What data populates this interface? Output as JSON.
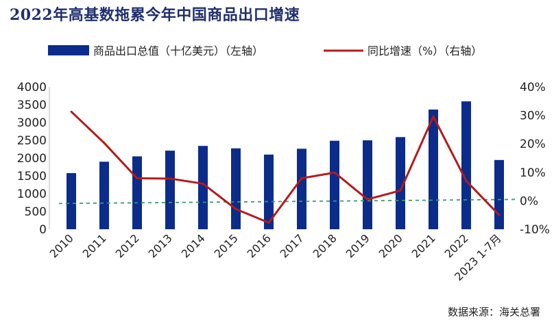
{
  "title": "2022年高基数拖累今年中国商品出口增速",
  "source": "数据来源：海关总署",
  "colors": {
    "bar": "#0b2c8a",
    "line": "#b51a1a",
    "zero_line": "#3a9a6a",
    "title": "#1f2f6e"
  },
  "chart_data": {
    "type": "bar",
    "title": "2022年高基数拖累今年中国商品出口增速",
    "categories": [
      "2010",
      "2011",
      "2012",
      "2013",
      "2014",
      "2015",
      "2016",
      "2017",
      "2018",
      "2019",
      "2020",
      "2021",
      "2022",
      "2023 1-7月"
    ],
    "series": [
      {
        "name": "商品出口总值（十亿美元）（左轴）",
        "type": "bar",
        "axis": "left",
        "values": [
          1578,
          1898,
          2049,
          2209,
          2342,
          2273,
          2098,
          2263,
          2487,
          2499,
          2590,
          3364,
          3594,
          1946
        ]
      },
      {
        "name": "同比增速（%）（右轴）",
        "type": "line",
        "axis": "right",
        "values": [
          31.3,
          20.3,
          7.9,
          7.8,
          6.0,
          -2.9,
          -7.7,
          7.9,
          9.9,
          0.5,
          3.6,
          29.6,
          7.0,
          -5.0
        ]
      }
    ],
    "y_left": {
      "min": 0,
      "max": 4000,
      "step": 500,
      "ticks": [
        "0",
        "500",
        "1000",
        "1500",
        "2000",
        "2500",
        "3000",
        "3500",
        "4000"
      ]
    },
    "y_right": {
      "min": -10,
      "max": 40,
      "step": 10,
      "ticks": [
        "-10%",
        "0%",
        "10%",
        "20%",
        "30%",
        "40%"
      ]
    },
    "reference_line": {
      "axis": "right",
      "value": 0,
      "style": "dashed"
    },
    "legend": {
      "placement": "top",
      "items": [
        "商品出口总值（十亿美元）（左轴）",
        "同比增速（%）（右轴）"
      ]
    },
    "grid": false
  }
}
